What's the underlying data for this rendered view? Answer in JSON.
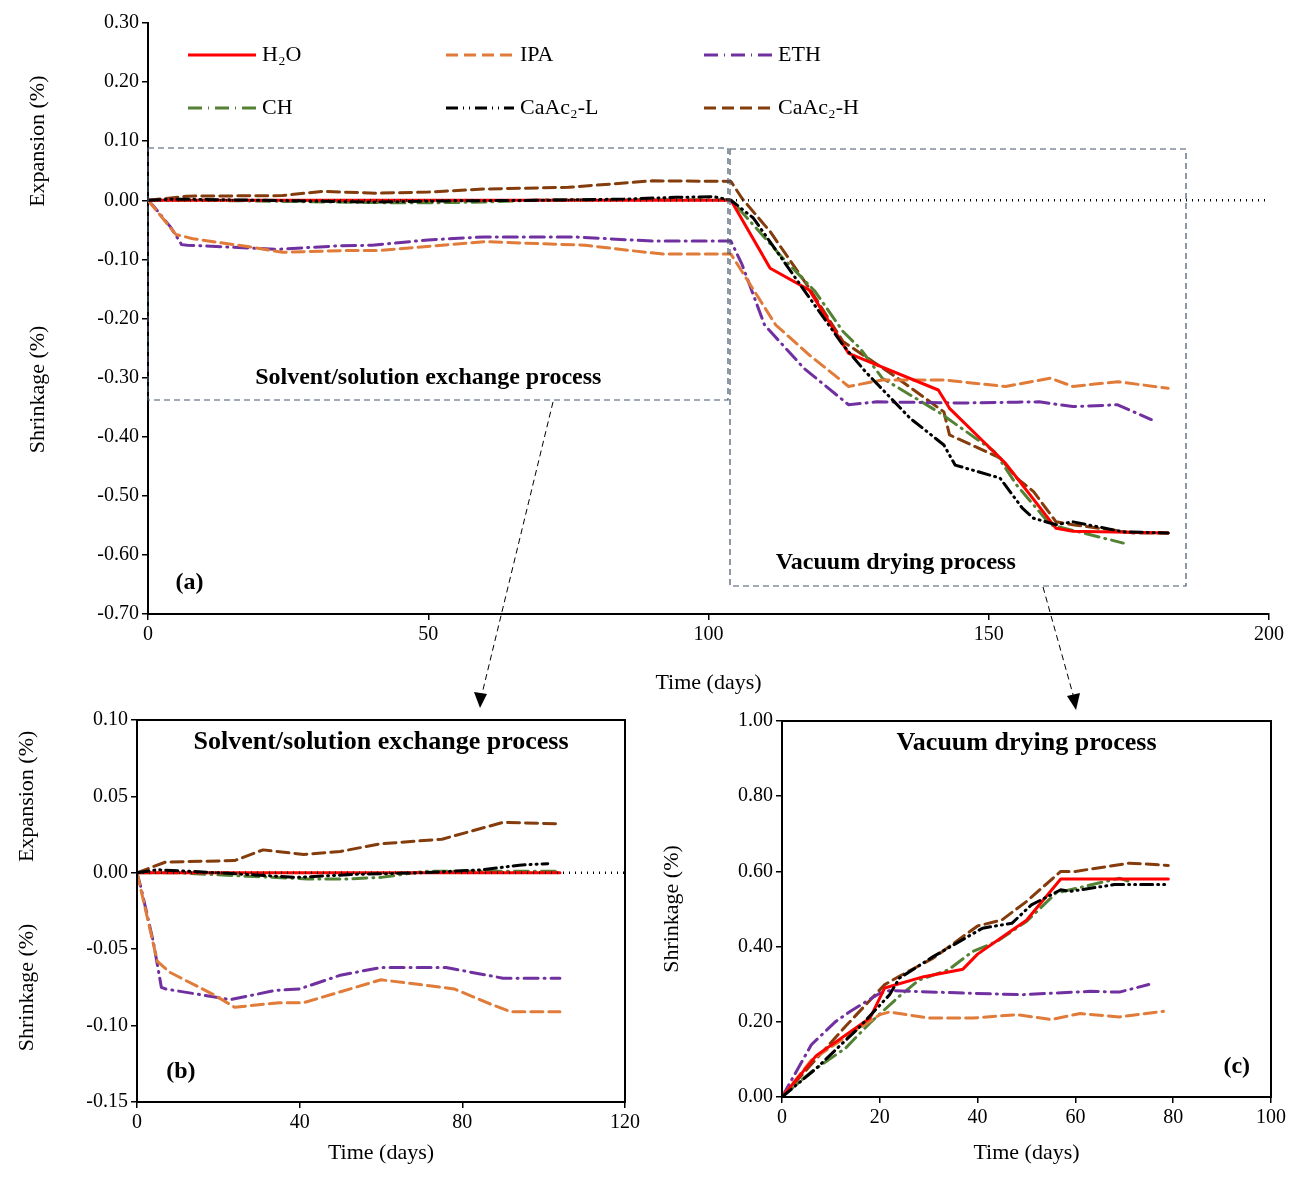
{
  "chart_data": [
    {
      "type": "line",
      "xlabel": "Time (days)",
      "ylabel": "Shrinkage (%)",
      "legend": "top left",
      "annotations": [
        "Expansion (%)",
        "Solvent/solution exchange process",
        "Vacuum drying process",
        "(a)"
      ],
      "xlim": [
        0,
        200
      ],
      "xticks": [
        0,
        50,
        100,
        150,
        200
      ],
      "ylim": [
        -0.7,
        0.3
      ],
      "yticks": [
        {
          "value": 0.3,
          "label": "0.30"
        },
        {
          "value": 0.2,
          "label": "0.20"
        },
        {
          "value": 0.1,
          "label": "0.10"
        },
        {
          "value": 0,
          "label": "0.00"
        },
        {
          "value": -0.1,
          "label": "-0.10"
        },
        {
          "value": -0.2,
          "label": "-0.20"
        },
        {
          "value": -0.3,
          "label": "-0.30"
        },
        {
          "value": -0.4,
          "label": "-0.40"
        },
        {
          "value": -0.5,
          "label": "-0.50"
        },
        {
          "value": -0.6,
          "label": "-0.60"
        },
        {
          "value": -0.7,
          "label": "-0.70"
        }
      ],
      "ref_lines": [
        {
          "axis": "y",
          "value": 0,
          "color": "#000000",
          "line_style": "dotted"
        }
      ],
      "series": [
        {
          "name": "H₂O",
          "color": "#ff0000",
          "line_style": "solid",
          "x": [
            0,
            20,
            40,
            60,
            80,
            104,
            111,
            118,
            125,
            141,
            143,
            153,
            162,
            165,
            182
          ],
          "values": [
            0,
            0,
            0,
            0,
            0,
            0,
            -0.115,
            -0.152,
            -0.259,
            -0.321,
            -0.352,
            -0.445,
            -0.555,
            -0.56,
            -0.563
          ]
        },
        {
          "name": "IPA",
          "color": "#e07b39",
          "line_style": "dashed",
          "x": [
            0,
            2,
            5,
            8,
            19,
            24,
            35,
            41,
            60,
            78,
            87,
            92,
            104,
            106,
            112,
            118,
            125,
            131,
            142,
            153,
            161,
            165,
            173,
            182
          ],
          "values": [
            0,
            -0.023,
            -0.058,
            -0.065,
            -0.08,
            -0.088,
            -0.085,
            -0.085,
            -0.07,
            -0.076,
            -0.086,
            -0.091,
            -0.091,
            -0.121,
            -0.211,
            -0.262,
            -0.315,
            -0.304,
            -0.304,
            -0.315,
            -0.301,
            -0.315,
            -0.307,
            -0.318
          ]
        },
        {
          "name": "ETH",
          "color": "#7030a0",
          "line_style": "dashdot",
          "x": [
            0,
            1,
            4,
            6,
            7,
            23,
            34,
            40,
            50,
            60,
            76,
            90,
            104,
            106,
            110,
            117,
            125,
            130,
            145,
            159,
            165,
            173,
            179
          ],
          "values": [
            0,
            -0.01,
            -0.045,
            -0.075,
            -0.076,
            -0.083,
            -0.077,
            -0.076,
            -0.067,
            -0.062,
            -0.062,
            -0.069,
            -0.069,
            -0.109,
            -0.211,
            -0.284,
            -0.346,
            -0.341,
            -0.343,
            -0.341,
            -0.349,
            -0.346,
            -0.371
          ]
        },
        {
          "name": "CH",
          "color": "#548235",
          "line_style": "dashdot",
          "x": [
            0,
            10,
            25,
            42,
            52,
            60,
            71,
            90,
            104,
            113,
            119,
            124,
            127,
            131,
            134,
            141,
            151,
            155,
            161,
            174
          ],
          "values": [
            0,
            0,
            -0.002,
            -0.004,
            -0.004,
            -0.003,
            0.001,
            0.001,
            0.001,
            -0.095,
            -0.154,
            -0.222,
            -0.25,
            -0.301,
            -0.318,
            -0.358,
            -0.425,
            -0.482,
            -0.549,
            -0.58
          ]
        },
        {
          "name": "CaAc₂-L",
          "color": "#000000",
          "line_style": "dashdotdot",
          "x": [
            0,
            5,
            20,
            39,
            54,
            70,
            85,
            94,
            101,
            104,
            108,
            116,
            124,
            128,
            136,
            142,
            144,
            152,
            156,
            158,
            162,
            165,
            174,
            182
          ],
          "values": [
            0,
            0.002,
            0,
            -0.003,
            -0.001,
            0,
            0.002,
            0.005,
            0.006,
            0,
            -0.03,
            -0.138,
            -0.245,
            -0.29,
            -0.369,
            -0.414,
            -0.448,
            -0.47,
            -0.521,
            -0.538,
            -0.549,
            -0.544,
            -0.561,
            -0.563
          ]
        },
        {
          "name": "CaAc₂-H",
          "color": "#843c0c",
          "line_style": "dashed",
          "x": [
            0,
            7,
            24,
            31,
            41,
            50,
            60,
            75,
            90,
            104,
            106,
            111,
            118,
            124,
            133,
            142,
            143,
            152,
            155,
            158,
            162,
            165,
            176,
            182
          ],
          "values": [
            0,
            0.007,
            0.008,
            0.015,
            0.012,
            0.014,
            0.019,
            0.022,
            0.033,
            0.032,
            0.003,
            -0.053,
            -0.149,
            -0.239,
            -0.296,
            -0.358,
            -0.397,
            -0.436,
            -0.47,
            -0.493,
            -0.544,
            -0.549,
            -0.563,
            -0.563
          ]
        }
      ]
    },
    {
      "type": "line",
      "title": "Solvent/solution exchange process",
      "xlabel": "Time (days)",
      "ylabel": "Shrinkage (%)",
      "annotations": [
        "Expansion (%)",
        "(b)"
      ],
      "xlim": [
        0,
        120
      ],
      "xticks": [
        0,
        40,
        80,
        120
      ],
      "ylim": [
        -0.15,
        0.1
      ],
      "yticks": [
        {
          "value": 0.1,
          "label": "0.10"
        },
        {
          "value": 0.05,
          "label": "0.05"
        },
        {
          "value": 0,
          "label": "0.00"
        },
        {
          "value": -0.05,
          "label": "-0.05"
        },
        {
          "value": -0.1,
          "label": "-0.10"
        },
        {
          "value": -0.15,
          "label": "-0.15"
        }
      ],
      "ref_lines": [
        {
          "axis": "y",
          "value": 0,
          "color": "#000000",
          "line_style": "dotted"
        }
      ],
      "series": [
        {
          "color": "#ff0000",
          "line_style": "solid",
          "x": [
            0,
            20,
            40,
            60,
            80,
            104
          ],
          "values": [
            0,
            0,
            0,
            0,
            0,
            0
          ]
        },
        {
          "color": "#e07b39",
          "line_style": "dashed",
          "x": [
            0,
            2,
            5,
            8,
            19,
            24,
            35,
            41,
            60,
            78,
            87,
            92,
            104
          ],
          "values": [
            0,
            -0.023,
            -0.058,
            -0.065,
            -0.08,
            -0.088,
            -0.085,
            -0.085,
            -0.07,
            -0.076,
            -0.086,
            -0.091,
            -0.091
          ]
        },
        {
          "color": "#7030a0",
          "line_style": "dashdot",
          "x": [
            0,
            1,
            4,
            6,
            7,
            23,
            34,
            40,
            50,
            60,
            76,
            90,
            104
          ],
          "values": [
            0,
            -0.01,
            -0.045,
            -0.075,
            -0.076,
            -0.083,
            -0.077,
            -0.076,
            -0.067,
            -0.062,
            -0.062,
            -0.069,
            -0.069
          ]
        },
        {
          "color": "#548235",
          "line_style": "dashdot",
          "x": [
            0,
            10,
            25,
            42,
            52,
            60,
            71,
            90,
            104
          ],
          "values": [
            0,
            0,
            -0.002,
            -0.004,
            -0.004,
            -0.003,
            0.001,
            0.001,
            0.001
          ]
        },
        {
          "color": "#000000",
          "line_style": "dashdotdot",
          "x": [
            0,
            5,
            20,
            39,
            54,
            70,
            85,
            94,
            101
          ],
          "values": [
            0,
            0.002,
            0,
            -0.003,
            -0.001,
            0,
            0.002,
            0.005,
            0.006
          ]
        },
        {
          "color": "#843c0c",
          "line_style": "dashed",
          "x": [
            0,
            7,
            24,
            31,
            41,
            50,
            60,
            75,
            90,
            104
          ],
          "values": [
            0,
            0.007,
            0.008,
            0.015,
            0.012,
            0.014,
            0.019,
            0.022,
            0.033,
            0.032
          ]
        }
      ]
    },
    {
      "type": "line",
      "title": "Vacuum drying process",
      "xlabel": "Time (days)",
      "ylabel": "Shrinkage (%)",
      "annotations": [
        "(c)"
      ],
      "xlim": [
        0,
        100
      ],
      "xticks": [
        0,
        20,
        40,
        60,
        80,
        100
      ],
      "ylim": [
        0,
        1
      ],
      "yticks": [
        {
          "value": 0,
          "label": "0.00"
        },
        {
          "value": 0.2,
          "label": "0.20"
        },
        {
          "value": 0.4,
          "label": "0.40"
        },
        {
          "value": 0.6,
          "label": "0.60"
        },
        {
          "value": 0.8,
          "label": "0.80"
        },
        {
          "value": 1,
          "label": "1.00"
        }
      ],
      "series": [
        {
          "color": "#ff0000",
          "line_style": "solid",
          "x": [
            0,
            7,
            18,
            21,
            29,
            37,
            40,
            50,
            57,
            79
          ],
          "values": [
            0,
            0.11,
            0.21,
            0.29,
            0.32,
            0.34,
            0.38,
            0.47,
            0.58,
            0.58
          ]
        },
        {
          "color": "#e07b39",
          "line_style": "dashed",
          "x": [
            0,
            6,
            20,
            22,
            30,
            39,
            48,
            55,
            61,
            69,
            78
          ],
          "values": [
            0,
            0.098,
            0.219,
            0.226,
            0.21,
            0.21,
            0.219,
            0.206,
            0.222,
            0.213,
            0.228
          ]
        },
        {
          "color": "#7030a0",
          "line_style": "dashdot",
          "x": [
            0,
            6,
            11,
            14,
            20,
            22,
            38,
            49,
            63,
            69,
            75
          ],
          "values": [
            0,
            0.139,
            0.201,
            0.228,
            0.276,
            0.283,
            0.276,
            0.272,
            0.281,
            0.279,
            0.299
          ]
        },
        {
          "color": "#548235",
          "line_style": "dashdot",
          "x": [
            0,
            6,
            13,
            18,
            24,
            28,
            34,
            39,
            44,
            50,
            56,
            69,
            71
          ],
          "values": [
            0,
            0.067,
            0.13,
            0.197,
            0.268,
            0.311,
            0.338,
            0.387,
            0.414,
            0.467,
            0.542,
            0.582,
            0.573
          ]
        },
        {
          "color": "#000000",
          "line_style": "dashdotdot",
          "x": [
            0,
            7,
            16,
            22,
            24,
            31,
            41,
            47,
            51,
            57,
            59,
            68,
            79
          ],
          "values": [
            0,
            0.076,
            0.188,
            0.272,
            0.316,
            0.374,
            0.449,
            0.462,
            0.511,
            0.551,
            0.547,
            0.565,
            0.565
          ]
        },
        {
          "color": "#843c0c",
          "line_style": "dashed",
          "x": [
            0,
            13,
            21,
            24,
            31,
            40,
            45,
            50,
            57,
            60,
            71,
            79
          ],
          "values": [
            0,
            0.188,
            0.299,
            0.321,
            0.37,
            0.455,
            0.471,
            0.52,
            0.6,
            0.6,
            0.622,
            0.616
          ]
        }
      ]
    }
  ]
}
